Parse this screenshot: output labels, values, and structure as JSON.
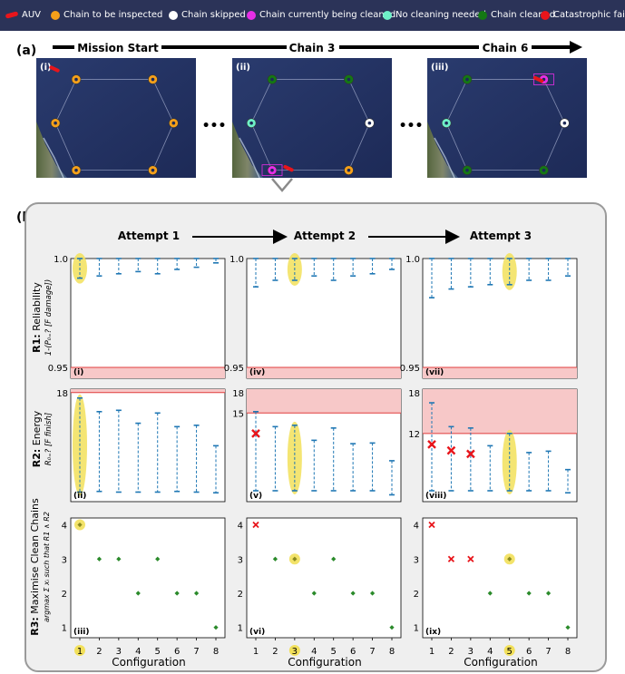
{
  "legend": {
    "items": [
      {
        "label": "AUV",
        "color": "#e8151b",
        "kind": "auv"
      },
      {
        "label": "Chain to be inspected",
        "color": "#f5a01a",
        "kind": "dot"
      },
      {
        "label": "Chain skipped",
        "color": "#ffffff",
        "kind": "dot"
      },
      {
        "label": "Chain currently being cleaned",
        "color": "#e62ee6",
        "kind": "dot"
      },
      {
        "label": "No cleaning needed",
        "color": "#6ef0c8",
        "kind": "dot"
      },
      {
        "label": "Chain cleaned",
        "color": "#147814",
        "kind": "dot"
      },
      {
        "label": "Catastrophic failure",
        "color": "#e8151b",
        "kind": "dot"
      }
    ]
  },
  "section_a": {
    "label": "(a)",
    "timeline": [
      "Mission Start",
      "Chain 3",
      "Chain 6"
    ],
    "ellipsis": "•••",
    "panels": [
      {
        "label": "(i)",
        "chains": [
          "orange",
          "orange",
          "orange",
          "orange",
          "orange",
          "orange"
        ],
        "current": -1
      },
      {
        "label": "(ii)",
        "chains": [
          "green",
          "green",
          "aqua",
          "white-skip",
          "magenta",
          "orange"
        ],
        "current": 4
      },
      {
        "label": "(iii)",
        "chains": [
          "green",
          "magenta",
          "aqua",
          "white",
          "green",
          "green"
        ],
        "current": 1
      }
    ]
  },
  "section_b": {
    "label": "(b)",
    "attempts": [
      "Attempt 1",
      "Attempt 2",
      "Attempt 3"
    ],
    "xlabel": "Configuration",
    "rows": [
      {
        "bold": "R1:",
        "title": "Reliability",
        "sub": "1-(P₀₌? [F damage])",
        "yticks": [
          "1.0",
          "0.95"
        ],
        "panel_labels": [
          "(i)",
          "(iv)",
          "(vii)"
        ]
      },
      {
        "bold": "R2:",
        "title": "Energy",
        "sub": "R₀₌? [F finish]",
        "yticks_by_attempt": [
          [
            "18"
          ],
          [
            "18",
            "15"
          ],
          [
            "18",
            "12"
          ]
        ],
        "panel_labels": [
          "(ii)",
          "(v)",
          "(viii)"
        ]
      },
      {
        "bold": "R3:",
        "title": "Maximise Clean Chains",
        "sub": "argmax Σ xᵢ such that R1 ∧ R2",
        "yticks": [
          "1",
          "2",
          "3",
          "4"
        ],
        "panel_labels": [
          "(iii)",
          "(vi)",
          "(ix)"
        ]
      }
    ]
  },
  "chart_data": {
    "type": "errorbar+scatter",
    "categories": [
      "1",
      "2",
      "3",
      "4",
      "5",
      "6",
      "7",
      "8"
    ],
    "reliability": {
      "ylim": [
        0.945,
        1.0
      ],
      "threshold": 0.95,
      "attempt1": {
        "upper": [
          1.0,
          1.0,
          1.0,
          1.0,
          1.0,
          1.0,
          1.0,
          1.0
        ],
        "lower": [
          0.991,
          0.992,
          0.993,
          0.994,
          0.993,
          0.995,
          0.996,
          0.998
        ],
        "selected": 1
      },
      "attempt2": {
        "upper": [
          1.0,
          1.0,
          1.0,
          1.0,
          1.0,
          1.0,
          1.0,
          1.0
        ],
        "lower": [
          0.987,
          0.99,
          0.99,
          0.992,
          0.99,
          0.992,
          0.993,
          0.995
        ],
        "selected": 3
      },
      "attempt3": {
        "upper": [
          1.0,
          1.0,
          1.0,
          1.0,
          1.0,
          1.0,
          1.0,
          1.0
        ],
        "lower": [
          0.982,
          0.986,
          0.987,
          0.988,
          0.988,
          0.99,
          0.99,
          0.992
        ],
        "selected": 5
      }
    },
    "energy": {
      "ylim": [
        2,
        18.5
      ],
      "attempt1": {
        "threshold": 18,
        "upper": [
          17.2,
          15.2,
          15.4,
          13.5,
          15.0,
          13.0,
          13.2,
          10.2
        ],
        "lower": [
          3.4,
          3.5,
          3.4,
          3.4,
          3.4,
          3.5,
          3.4,
          3.3
        ],
        "mid": [
          null,
          null,
          null,
          null,
          null,
          null,
          null,
          null
        ],
        "selected": 1
      },
      "attempt2": {
        "threshold": 15,
        "upper": [
          15.2,
          13.0,
          13.2,
          11.0,
          12.8,
          10.5,
          10.6,
          8.0
        ],
        "lower": [
          3.6,
          3.6,
          3.6,
          3.6,
          3.6,
          3.6,
          3.6,
          3.0
        ],
        "mid": [
          12.0,
          null,
          null,
          null,
          null,
          null,
          null,
          null
        ],
        "selected": 3
      },
      "attempt3": {
        "threshold": 12,
        "upper": [
          16.5,
          13.0,
          12.8,
          10.2,
          12.0,
          9.2,
          9.4,
          6.7
        ],
        "lower": [
          3.6,
          3.6,
          3.6,
          3.6,
          3.6,
          3.6,
          3.6,
          3.3
        ],
        "mid": [
          10.4,
          9.5,
          9.0,
          null,
          null,
          null,
          null,
          null
        ],
        "selected": 5
      }
    },
    "clean_chains": {
      "ylim": [
        0.7,
        4.2
      ],
      "attempt1": {
        "values": [
          4,
          3,
          3,
          2,
          3,
          2,
          2,
          1
        ],
        "failed": [],
        "selected": 1
      },
      "attempt2": {
        "values": [
          4,
          3,
          3,
          2,
          3,
          2,
          2,
          1
        ],
        "failed": [
          1
        ],
        "selected": 3
      },
      "attempt3": {
        "values": [
          4,
          3,
          3,
          2,
          3,
          2,
          2,
          1
        ],
        "failed": [
          1,
          2,
          3
        ],
        "selected": 5
      }
    }
  }
}
